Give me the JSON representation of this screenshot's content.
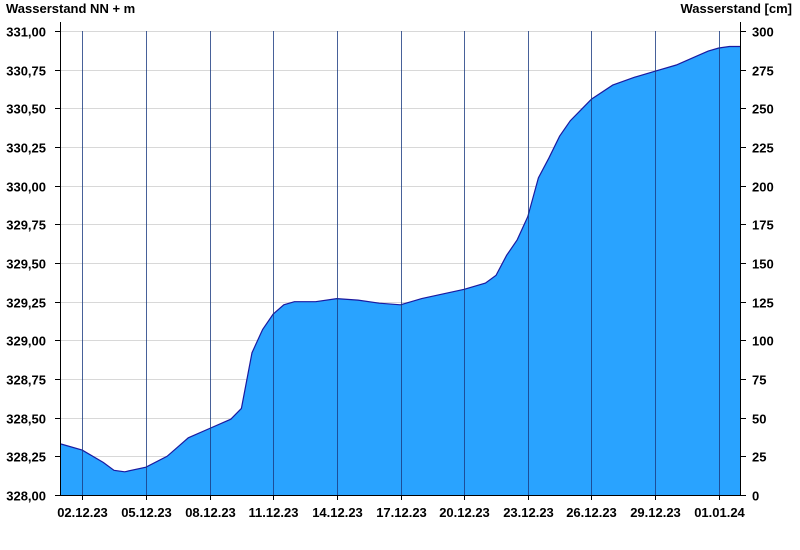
{
  "chart_data": {
    "type": "area",
    "left_axis_label": "Wasserstand NN + m",
    "right_axis_label": "Wasserstand [cm]",
    "grid": true,
    "fill_color": "#29a3ff",
    "line_color": "#1a1aa0",
    "x_start": "01.12.23",
    "x_end": "01.01.24",
    "x_ticks": [
      "02.12.23",
      "05.12.23",
      "08.12.23",
      "11.12.23",
      "14.12.23",
      "17.12.23",
      "20.12.23",
      "23.12.23",
      "26.12.23",
      "29.12.23",
      "01.01.24"
    ],
    "y_left": {
      "min": 328.0,
      "max": 331.0,
      "ticks": [
        "328,00",
        "328,25",
        "328,50",
        "328,75",
        "329,00",
        "329,25",
        "329,50",
        "329,75",
        "330,00",
        "330,25",
        "330,50",
        "330,75",
        "331,00"
      ]
    },
    "y_right": {
      "min": 0,
      "max": 300,
      "ticks": [
        "0",
        "25",
        "50",
        "75",
        "100",
        "125",
        "150",
        "175",
        "200",
        "225",
        "250",
        "275",
        "300"
      ]
    },
    "series": [
      {
        "unit": "cm",
        "points": [
          [
            "01.12.23 00:00",
            33
          ],
          [
            "02.12.23 00:00",
            29
          ],
          [
            "03.12.23 00:00",
            21
          ],
          [
            "03.12.23 12:00",
            16
          ],
          [
            "04.12.23 00:00",
            15
          ],
          [
            "05.12.23 00:00",
            18
          ],
          [
            "06.12.23 00:00",
            25
          ],
          [
            "06.12.23 12:00",
            31
          ],
          [
            "07.12.23 00:00",
            37
          ],
          [
            "08.12.23 00:00",
            43
          ],
          [
            "09.12.23 00:00",
            49
          ],
          [
            "09.12.23 12:00",
            56
          ],
          [
            "10.12.23 00:00",
            92
          ],
          [
            "10.12.23 12:00",
            107
          ],
          [
            "11.12.23 00:00",
            117
          ],
          [
            "11.12.23 12:00",
            123
          ],
          [
            "12.12.23 00:00",
            125
          ],
          [
            "13.12.23 00:00",
            125
          ],
          [
            "14.12.23 00:00",
            127
          ],
          [
            "15.12.23 00:00",
            126
          ],
          [
            "16.12.23 00:00",
            124
          ],
          [
            "17.12.23 00:00",
            123
          ],
          [
            "18.12.23 00:00",
            127
          ],
          [
            "19.12.23 00:00",
            130
          ],
          [
            "20.12.23 00:00",
            133
          ],
          [
            "21.12.23 00:00",
            137
          ],
          [
            "21.12.23 12:00",
            142
          ],
          [
            "22.12.23 00:00",
            155
          ],
          [
            "22.12.23 12:00",
            165
          ],
          [
            "23.12.23 00:00",
            180
          ],
          [
            "23.12.23 12:00",
            205
          ],
          [
            "24.12.23 00:00",
            218
          ],
          [
            "24.12.23 12:00",
            232
          ],
          [
            "25.12.23 00:00",
            242
          ],
          [
            "25.12.23 12:00",
            249
          ],
          [
            "26.12.23 00:00",
            256
          ],
          [
            "27.12.23 00:00",
            265
          ],
          [
            "28.12.23 00:00",
            270
          ],
          [
            "29.12.23 00:00",
            274
          ],
          [
            "30.12.23 00:00",
            278
          ],
          [
            "31.12.23 00:00",
            284
          ],
          [
            "31.12.23 12:00",
            287
          ],
          [
            "01.01.24 00:00",
            289
          ],
          [
            "01.01.24 12:00",
            290
          ]
        ]
      }
    ]
  }
}
